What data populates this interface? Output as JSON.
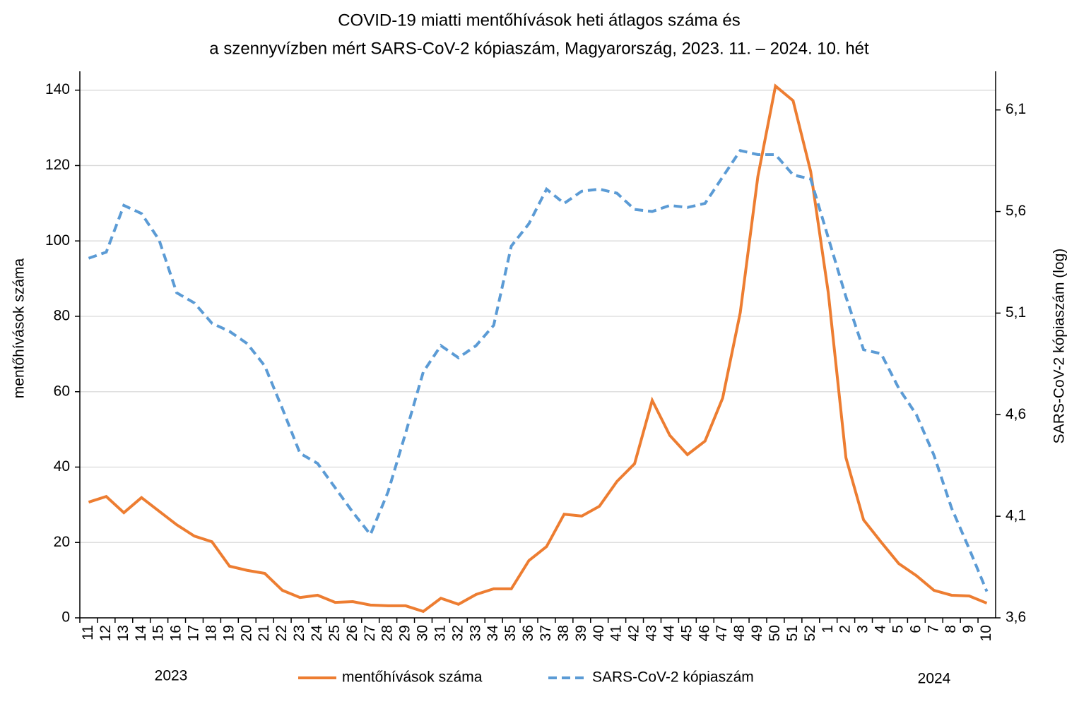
{
  "chart_data": {
    "type": "line",
    "title": [
      "COVID-19 miatti mentőhívások heti átlagos száma és",
      "a szennyvízben mért SARS-CoV-2 kópiaszám, Magyarország, 2023. 11. – 2024. 10. hét"
    ],
    "ylabel": "mentőhívások száma",
    "y2label": "SARS-CoV-2 kópiaszám (log)",
    "annotations": [
      "2023",
      "2024"
    ],
    "categories": [
      "11",
      "12",
      "13",
      "14",
      "15",
      "16",
      "17",
      "18",
      "19",
      "20",
      "21",
      "22",
      "23",
      "24",
      "25",
      "26",
      "27",
      "28",
      "29",
      "30",
      "31",
      "32",
      "33",
      "34",
      "35",
      "36",
      "37",
      "38",
      "39",
      "40",
      "41",
      "42",
      "43",
      "44",
      "45",
      "46",
      "47",
      "48",
      "49",
      "50",
      "51",
      "52",
      "1",
      "2",
      "3",
      "4",
      "5",
      "6",
      "7",
      "8",
      "9",
      "10"
    ],
    "series": [
      {
        "name": "mentőhívások száma",
        "color": "#ed7d31",
        "dash": false,
        "axis": "y",
        "values": [
          30.7,
          32.2,
          27.9,
          31.9,
          28.3,
          24.7,
          21.7,
          20.2,
          13.7,
          12.6,
          11.8,
          7.3,
          5.4,
          6.0,
          4.1,
          4.3,
          3.4,
          3.2,
          3.2,
          1.7,
          5.2,
          3.6,
          6.2,
          7.7,
          7.7,
          15.2,
          18.9,
          27.5,
          27.0,
          29.6,
          36.2,
          40.9,
          57.7,
          48.4,
          43.3,
          46.9,
          58.3,
          81.0,
          117.1,
          141.1,
          137.2,
          118.4,
          86.2,
          42.5,
          26.0,
          20.1,
          14.4,
          11.2,
          7.3,
          6.0,
          5.8,
          3.9
        ]
      },
      {
        "name": "SARS-CoV-2 kópiaszám",
        "color": "#5b9bd5",
        "dash": true,
        "axis": "y2",
        "values": [
          5.37,
          5.4,
          5.63,
          5.59,
          5.46,
          5.2,
          5.15,
          5.05,
          5.01,
          4.95,
          4.84,
          4.63,
          4.41,
          4.36,
          4.24,
          4.12,
          4.01,
          4.22,
          4.51,
          4.81,
          4.94,
          4.88,
          4.94,
          5.04,
          5.43,
          5.54,
          5.71,
          5.64,
          5.7,
          5.71,
          5.69,
          5.61,
          5.6,
          5.63,
          5.62,
          5.64,
          5.77,
          5.9,
          5.88,
          5.88,
          5.78,
          5.76,
          5.47,
          5.18,
          4.92,
          4.9,
          4.73,
          4.6,
          4.4,
          4.14,
          3.94,
          3.73
        ]
      }
    ],
    "ylim": [
      0,
      145
    ],
    "yticks": [
      0,
      20,
      40,
      60,
      80,
      100,
      120,
      140
    ],
    "y2lim": [
      3.6,
      6.29
    ],
    "y2ticks": [
      {
        "value": 3.6,
        "label": "3,6"
      },
      {
        "value": 4.1,
        "label": "4,1"
      },
      {
        "value": 4.6,
        "label": "4,6"
      },
      {
        "value": 5.1,
        "label": "5,1"
      },
      {
        "value": 5.6,
        "label": "5,6"
      },
      {
        "value": 6.1,
        "label": "6,1"
      }
    ],
    "grid": true,
    "legend": "bottom"
  }
}
